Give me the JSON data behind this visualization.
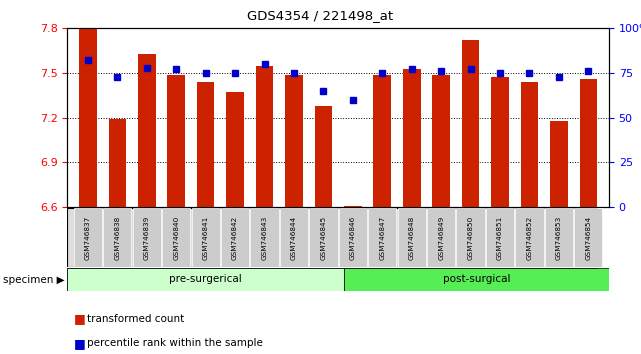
{
  "title": "GDS4354 / 221498_at",
  "samples": [
    "GSM746837",
    "GSM746838",
    "GSM746839",
    "GSM746840",
    "GSM746841",
    "GSM746842",
    "GSM746843",
    "GSM746844",
    "GSM746845",
    "GSM746846",
    "GSM746847",
    "GSM746848",
    "GSM746849",
    "GSM746850",
    "GSM746851",
    "GSM746852",
    "GSM746853",
    "GSM746854"
  ],
  "bar_values": [
    7.8,
    7.19,
    7.63,
    7.49,
    7.44,
    7.37,
    7.55,
    7.49,
    7.28,
    6.61,
    7.49,
    7.53,
    7.49,
    7.72,
    7.47,
    7.44,
    7.18,
    7.46
  ],
  "percentile_values": [
    82,
    73,
    78,
    77,
    75,
    75,
    80,
    75,
    65,
    60,
    75,
    77,
    76,
    77,
    75,
    75,
    73,
    76
  ],
  "ylim_left": [
    6.6,
    7.8
  ],
  "ylim_right": [
    0,
    100
  ],
  "yticks_left": [
    6.6,
    6.9,
    7.2,
    7.5,
    7.8
  ],
  "yticks_right": [
    0,
    25,
    50,
    75,
    100
  ],
  "bar_color": "#cc2200",
  "percentile_color": "#0000cc",
  "pre_surgical_count": 9,
  "post_surgical_count": 9,
  "pre_color": "#ccffcc",
  "post_color": "#55ee55",
  "pre_label": "pre-surgerical",
  "post_label": "post-surgical",
  "legend_bar_label": "transformed count",
  "legend_pct_label": "percentile rank within the sample",
  "background_color": "#ffffff",
  "tick_area_color": "#cccccc",
  "bar_width": 0.6
}
